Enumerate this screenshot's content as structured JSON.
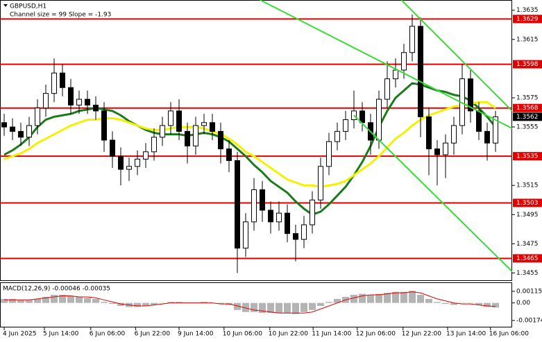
{
  "chart_data": {
    "type": "candlestick",
    "title": "GBPUSD,H1",
    "subtitle": "Channel size = 99 Slope = -1.93",
    "up_color": "#ffffff",
    "down_color": "#000000",
    "open": [
      1.3558,
      1.3555,
      1.3552,
      1.3548,
      1.3556,
      1.3568,
      1.3578,
      1.3592,
      1.3582,
      1.357,
      1.3574,
      1.357,
      1.3566,
      1.3546,
      1.3535,
      1.3526,
      1.3528,
      1.3533,
      1.3538,
      1.3548,
      1.3556,
      1.3566,
      1.3552,
      1.3542,
      1.3556,
      1.3558,
      1.3552,
      1.354,
      1.3532,
      1.3472,
      1.349,
      1.3512,
      1.3498,
      1.349,
      1.3496,
      1.3482,
      1.3478,
      1.3488,
      1.3505,
      1.3528,
      1.3545,
      1.3552,
      1.356,
      1.3566,
      1.3558,
      1.3546,
      1.3574,
      1.3588,
      1.3594,
      1.3606,
      1.3624,
      1.3562,
      1.354,
      1.3536,
      1.3544,
      1.3556,
      1.3588,
      1.3566,
      1.3552,
      1.3544
    ],
    "high": [
      1.3564,
      1.3561,
      1.3558,
      1.3562,
      1.3574,
      1.3584,
      1.3602,
      1.3598,
      1.3588,
      1.358,
      1.358,
      1.3576,
      1.3572,
      1.3552,
      1.3541,
      1.3534,
      1.3539,
      1.3544,
      1.3554,
      1.3562,
      1.3572,
      1.3574,
      1.3558,
      1.3562,
      1.3564,
      1.3564,
      1.3558,
      1.3546,
      1.3538,
      1.3496,
      1.352,
      1.3518,
      1.3504,
      1.3504,
      1.3502,
      1.3488,
      1.3494,
      1.3511,
      1.3534,
      1.3551,
      1.3558,
      1.3566,
      1.358,
      1.3572,
      1.3564,
      1.358,
      1.36,
      1.3602,
      1.3612,
      1.3632,
      1.363,
      1.3568,
      1.3546,
      1.355,
      1.3562,
      1.3598,
      1.3594,
      1.3572,
      1.3558,
      1.3566
    ],
    "low": [
      1.3549,
      1.3546,
      1.3542,
      1.3542,
      1.355,
      1.3562,
      1.3572,
      1.3576,
      1.3564,
      1.3564,
      1.3564,
      1.356,
      1.3538,
      1.3527,
      1.3515,
      1.3518,
      1.3522,
      1.3527,
      1.3532,
      1.3542,
      1.355,
      1.3546,
      1.353,
      1.3536,
      1.355,
      1.3546,
      1.353,
      1.3524,
      1.3455,
      1.3466,
      1.3484,
      1.349,
      1.3482,
      1.3484,
      1.3476,
      1.3463,
      1.3472,
      1.3482,
      1.3499,
      1.3522,
      1.3539,
      1.3546,
      1.3554,
      1.3552,
      1.3536,
      1.354,
      1.3568,
      1.3582,
      1.3588,
      1.36,
      1.3548,
      1.3522,
      1.3515,
      1.352,
      1.3536,
      1.355,
      1.3558,
      1.3546,
      1.3532,
      1.3538
    ],
    "close": [
      1.3555,
      1.3552,
      1.3548,
      1.3556,
      1.3568,
      1.3578,
      1.3592,
      1.3582,
      1.357,
      1.3574,
      1.357,
      1.3566,
      1.3546,
      1.3535,
      1.3526,
      1.3528,
      1.3533,
      1.3538,
      1.3548,
      1.3556,
      1.3566,
      1.3552,
      1.3542,
      1.3556,
      1.3558,
      1.3552,
      1.354,
      1.3532,
      1.3472,
      1.349,
      1.3512,
      1.3498,
      1.349,
      1.3496,
      1.3482,
      1.3478,
      1.3488,
      1.3505,
      1.3528,
      1.3545,
      1.3552,
      1.356,
      1.3566,
      1.3558,
      1.3546,
      1.3574,
      1.3588,
      1.3594,
      1.3606,
      1.3624,
      1.3562,
      1.354,
      1.3536,
      1.3544,
      1.3556,
      1.3588,
      1.3566,
      1.3552,
      1.3544,
      1.3562
    ],
    "moving_averages": [
      {
        "color": "#1a7a1a",
        "values": [
          1.3536,
          1.3539,
          1.3543,
          1.3548,
          1.3555,
          1.356,
          1.3562,
          1.3563,
          1.3564,
          1.3566,
          1.3567,
          1.3568,
          1.3567,
          1.3566,
          1.3563,
          1.3559,
          1.3556,
          1.3553,
          1.3551,
          1.355,
          1.355,
          1.355,
          1.3549,
          1.355,
          1.3551,
          1.355,
          1.3548,
          1.3545,
          1.354,
          1.3535,
          1.3529,
          1.3524,
          1.3518,
          1.3514,
          1.351,
          1.3504,
          1.3499,
          1.3495,
          1.3497,
          1.3502,
          1.3508,
          1.3514,
          1.3522,
          1.3531,
          1.3542,
          1.3555,
          1.3566,
          1.3575,
          1.358,
          1.3585,
          1.3584,
          1.3582,
          1.358,
          1.3579,
          1.3577,
          1.3576,
          1.3573,
          1.3568,
          1.3562,
          1.3555
        ]
      },
      {
        "color": "#f2f200",
        "values": [
          1.3533,
          1.3535,
          1.3537,
          1.354,
          1.3544,
          1.3547,
          1.355,
          1.3553,
          1.3556,
          1.3558,
          1.356,
          1.356,
          1.3561,
          1.3561,
          1.356,
          1.3558,
          1.3556,
          1.3554,
          1.3553,
          1.3553,
          1.3554,
          1.3555,
          1.3555,
          1.3555,
          1.3554,
          1.3552,
          1.355,
          1.3547,
          1.3543,
          1.3538,
          1.3535,
          1.3531,
          1.3527,
          1.3523,
          1.3519,
          1.3517,
          1.3515,
          1.3515,
          1.3514,
          1.3515,
          1.3516,
          1.3518,
          1.3522,
          1.3526,
          1.353,
          1.3535,
          1.3541,
          1.3547,
          1.3551,
          1.3556,
          1.356,
          1.3563,
          1.3565,
          1.3567,
          1.3569,
          1.357,
          1.3571,
          1.3572,
          1.3572,
          1.3568
        ]
      }
    ],
    "channel_lines": [
      {
        "color": "#33dd33",
        "x": [
          30.75,
          61
        ],
        "values": [
          1.3642,
          1.3554
        ]
      },
      {
        "color": "#33dd33",
        "x": [
          47.7,
          61
        ],
        "values": [
          1.3642,
          1.3566
        ]
      },
      {
        "color": "#33dd33",
        "x": [
          42,
          61
        ],
        "values": [
          1.3563,
          1.3456
        ]
      }
    ],
    "levels": {
      "color": "#e00000",
      "values": [
        1.3629,
        1.3598,
        1.3568,
        1.3535,
        1.3503,
        1.3465
      ]
    },
    "last_price": 1.3562,
    "xlim": [
      -0.5,
      61
    ],
    "ylim": [
      1.345,
      1.3642
    ],
    "yticks": [
      1.3635,
      1.3615,
      1.3575,
      1.3555,
      1.3515,
      1.3495,
      1.3475,
      1.3455
    ],
    "x_labels": [
      {
        "value": 0,
        "label": "4 Jun 2025"
      },
      {
        "value": 4.83,
        "label": "5 Jun 14:00"
      },
      {
        "value": 10.4,
        "label": "6 Jun 06:00"
      },
      {
        "value": 15.8,
        "label": "6 Jun 22:00"
      },
      {
        "value": 21,
        "label": "9 Jun 14:00"
      },
      {
        "value": 26.4,
        "label": "10 Jun 06:00"
      },
      {
        "value": 31.9,
        "label": "10 Jun 22:00"
      },
      {
        "value": 37.1,
        "label": "11 Jun 14:00"
      },
      {
        "value": 42.4,
        "label": "12 Jun 06:00"
      },
      {
        "value": 47.9,
        "label": "12 Jun 22:00"
      },
      {
        "value": 53.25,
        "label": "13 Jun 14:00"
      },
      {
        "value": 58.4,
        "label": "16 Jun 06:00"
      }
    ],
    "macd": {
      "label": "MACD(12,26,9) -0.00046 -0.00035",
      "hist_color": "#b4b4b4",
      "signal_color": "#e00000",
      "histogram": [
        0.0004,
        0.0004,
        0.0003,
        0.0003,
        0.0004,
        0.0006,
        0.0008,
        0.0008,
        0.0007,
        0.0006,
        0.0005,
        0.0004,
        0.0001,
        -0.0001,
        -0.0003,
        -0.0004,
        -0.0004,
        -0.0003,
        -0.0002,
        0.0,
        0.0001,
        0.0001,
        0.0,
        0.0,
        0.0001,
        0.0,
        -0.0001,
        -0.0002,
        -0.0007,
        -0.0009,
        -0.0009,
        -0.001,
        -0.001,
        -0.001,
        -0.001,
        -0.0011,
        -0.0009,
        -0.0007,
        -0.0003,
        0.0001,
        0.0004,
        0.0006,
        0.0008,
        0.0009,
        0.0008,
        0.0009,
        0.001,
        0.0011,
        0.0011,
        0.0012,
        0.0008,
        0.0004,
        0.0001,
        -0.0001,
        -0.0002,
        0.0,
        0.0,
        -0.0002,
        -0.0004,
        -0.00046
      ],
      "signal": [
        0.0003,
        0.0003,
        0.0003,
        0.0003,
        0.0004,
        0.0005,
        0.0006,
        0.0007,
        0.0007,
        0.0006,
        0.0006,
        0.0005,
        0.0003,
        0.0001,
        -0.0001,
        -0.0002,
        -0.0003,
        -0.0003,
        -0.0002,
        -0.0001,
        0.0,
        0.0,
        0.0,
        0.0,
        0.0,
        0.0,
        -0.0001,
        -0.0001,
        -0.0003,
        -0.0005,
        -0.0007,
        -0.0008,
        -0.0009,
        -0.001,
        -0.001,
        -0.001,
        -0.001,
        -0.0009,
        -0.0006,
        -0.0003,
        0.0,
        0.0003,
        0.0005,
        0.0007,
        0.0008,
        0.0008,
        0.0009,
        0.001,
        0.001,
        0.0011,
        0.001,
        0.0007,
        0.0004,
        0.0002,
        0.0,
        -0.0001,
        -0.0001,
        -0.0002,
        -0.0003,
        -0.00035
      ],
      "ylim": [
        -0.00243,
        0.00204
      ],
      "yticks": [
        {
          "value": 0.00115,
          "label": "0.00115"
        },
        {
          "value": 0,
          "label": "0.00"
        },
        -0.00174
      ]
    }
  }
}
